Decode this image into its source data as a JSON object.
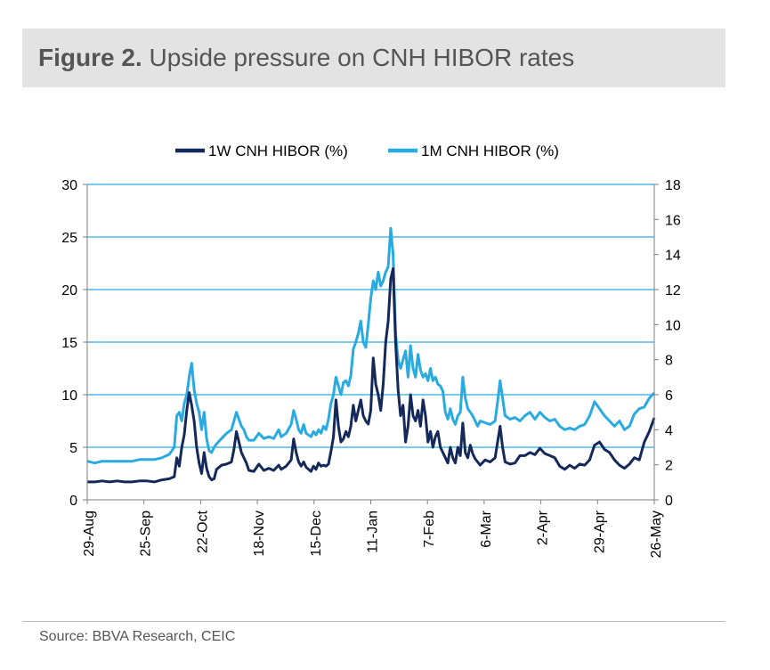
{
  "figure": {
    "label": "Figure  2.",
    "title": "Upside pressure on CNH HIBOR rates",
    "source": "Source:  BBVA Research,  CEIC"
  },
  "chart_data": {
    "type": "line",
    "legend_position": "top-center",
    "grid": "horizontal",
    "x_tick_labels": [
      "29-Aug",
      "25-Sep",
      "22-Oct",
      "18-Nov",
      "15-Dec",
      "11-Jan",
      "7-Feb",
      "6-Mar",
      "2-Apr",
      "29-Apr",
      "26-May"
    ],
    "y_left": {
      "min": 0,
      "max": 30,
      "ticks": [
        0,
        5,
        10,
        15,
        20,
        25,
        30
      ]
    },
    "y_right": {
      "min": 0,
      "max": 18,
      "ticks": [
        0,
        2,
        4,
        6,
        8,
        10,
        12,
        14,
        16,
        18
      ]
    },
    "series": [
      {
        "name": "1W CNH HIBOR (%)",
        "axis": "left",
        "color": "#14285a",
        "points": [
          [
            0,
            1.7
          ],
          [
            3,
            1.7
          ],
          [
            6,
            1.8
          ],
          [
            9,
            1.7
          ],
          [
            12,
            1.8
          ],
          [
            15,
            1.7
          ],
          [
            18,
            1.7
          ],
          [
            21,
            1.8
          ],
          [
            24,
            1.8
          ],
          [
            27,
            1.7
          ],
          [
            30,
            1.9
          ],
          [
            33,
            2.0
          ],
          [
            35,
            2.2
          ],
          [
            36,
            4.0
          ],
          [
            37,
            3.2
          ],
          [
            38,
            5.0
          ],
          [
            39,
            6.2
          ],
          [
            40,
            8.5
          ],
          [
            41,
            10.2
          ],
          [
            42,
            9.0
          ],
          [
            43,
            7.5
          ],
          [
            44,
            5.0
          ],
          [
            45,
            3.5
          ],
          [
            46,
            2.5
          ],
          [
            47,
            4.5
          ],
          [
            48,
            3.0
          ],
          [
            49,
            2.2
          ],
          [
            50,
            1.9
          ],
          [
            51,
            2.0
          ],
          [
            52,
            2.9
          ],
          [
            54,
            3.3
          ],
          [
            56,
            3.4
          ],
          [
            58,
            3.6
          ],
          [
            59,
            4.8
          ],
          [
            60,
            6.5
          ],
          [
            61,
            5.5
          ],
          [
            62,
            4.5
          ],
          [
            63,
            4.0
          ],
          [
            64,
            3.5
          ],
          [
            65,
            2.8
          ],
          [
            67,
            2.7
          ],
          [
            69,
            3.4
          ],
          [
            71,
            2.8
          ],
          [
            73,
            3.0
          ],
          [
            75,
            2.8
          ],
          [
            77,
            3.3
          ],
          [
            78,
            2.9
          ],
          [
            80,
            3.2
          ],
          [
            82,
            3.8
          ],
          [
            83,
            5.8
          ],
          [
            84,
            4.5
          ],
          [
            85,
            3.6
          ],
          [
            86,
            3.2
          ],
          [
            87,
            3.6
          ],
          [
            88,
            3.1
          ],
          [
            90,
            2.7
          ],
          [
            91,
            3.2
          ],
          [
            92,
            2.9
          ],
          [
            93,
            3.5
          ],
          [
            94,
            3.2
          ],
          [
            95,
            3.3
          ],
          [
            96,
            3.2
          ],
          [
            97,
            3.4
          ],
          [
            98,
            4.6
          ],
          [
            99,
            6.0
          ],
          [
            100,
            9.5
          ],
          [
            101,
            7.0
          ],
          [
            102,
            5.5
          ],
          [
            103,
            5.8
          ],
          [
            104,
            6.5
          ],
          [
            105,
            6.0
          ],
          [
            106,
            7.0
          ],
          [
            107,
            9.0
          ],
          [
            108,
            7.5
          ],
          [
            109,
            8.5
          ],
          [
            110,
            9.5
          ],
          [
            111,
            8.0
          ],
          [
            112,
            7.5
          ],
          [
            113,
            7.2
          ],
          [
            114,
            8.5
          ],
          [
            115,
            13.5
          ],
          [
            116,
            11.0
          ],
          [
            117,
            10.0
          ],
          [
            118,
            8.5
          ],
          [
            119,
            11.0
          ],
          [
            120,
            15.0
          ],
          [
            121,
            17.0
          ],
          [
            122,
            21.0
          ],
          [
            123,
            22.0
          ],
          [
            124,
            15.0
          ],
          [
            125,
            10.5
          ],
          [
            126,
            8.0
          ],
          [
            127,
            9.0
          ],
          [
            128,
            5.5
          ],
          [
            129,
            7.0
          ],
          [
            130,
            10.0
          ],
          [
            131,
            8.0
          ],
          [
            132,
            7.5
          ],
          [
            133,
            8.5
          ],
          [
            134,
            7.0
          ],
          [
            135,
            9.5
          ],
          [
            136,
            8.0
          ],
          [
            137,
            5.5
          ],
          [
            138,
            6.5
          ],
          [
            139,
            5.0
          ],
          [
            140,
            6.0
          ],
          [
            141,
            6.5
          ],
          [
            142,
            5.0
          ],
          [
            143,
            4.5
          ],
          [
            144,
            4.0
          ],
          [
            145,
            3.5
          ],
          [
            146,
            5.0
          ],
          [
            147,
            4.0
          ],
          [
            148,
            3.5
          ],
          [
            149,
            5.0
          ],
          [
            150,
            4.2
          ],
          [
            151,
            7.3
          ],
          [
            152,
            4.5
          ],
          [
            153,
            4.0
          ],
          [
            154,
            5.2
          ],
          [
            155,
            4.4
          ],
          [
            156,
            3.9
          ],
          [
            157,
            3.6
          ],
          [
            158,
            3.3
          ],
          [
            160,
            3.8
          ],
          [
            162,
            3.6
          ],
          [
            164,
            4.0
          ],
          [
            165,
            5.5
          ],
          [
            166,
            7.0
          ],
          [
            167,
            5.0
          ],
          [
            168,
            3.6
          ],
          [
            170,
            3.4
          ],
          [
            172,
            3.5
          ],
          [
            174,
            4.2
          ],
          [
            176,
            4.2
          ],
          [
            178,
            4.5
          ],
          [
            180,
            4.3
          ],
          [
            182,
            4.9
          ],
          [
            184,
            4.4
          ],
          [
            186,
            4.2
          ],
          [
            188,
            4.0
          ],
          [
            190,
            3.2
          ],
          [
            192,
            2.9
          ],
          [
            194,
            3.3
          ],
          [
            196,
            3.0
          ],
          [
            198,
            3.4
          ],
          [
            200,
            3.3
          ],
          [
            202,
            3.8
          ],
          [
            204,
            5.2
          ],
          [
            206,
            5.5
          ],
          [
            208,
            4.8
          ],
          [
            210,
            4.5
          ],
          [
            212,
            3.8
          ],
          [
            214,
            3.3
          ],
          [
            216,
            3.0
          ],
          [
            218,
            3.4
          ],
          [
            220,
            4.0
          ],
          [
            222,
            3.8
          ],
          [
            224,
            5.5
          ],
          [
            226,
            6.5
          ],
          [
            228,
            7.8
          ]
        ]
      },
      {
        "name": "1M CNH HIBOR (%)",
        "axis": "right",
        "color": "#29abe2",
        "points": [
          [
            0,
            2.2
          ],
          [
            3,
            2.1
          ],
          [
            6,
            2.2
          ],
          [
            9,
            2.2
          ],
          [
            12,
            2.2
          ],
          [
            15,
            2.2
          ],
          [
            18,
            2.2
          ],
          [
            21,
            2.3
          ],
          [
            24,
            2.3
          ],
          [
            27,
            2.3
          ],
          [
            30,
            2.4
          ],
          [
            33,
            2.6
          ],
          [
            35,
            3.0
          ],
          [
            36,
            4.8
          ],
          [
            37,
            5.0
          ],
          [
            38,
            4.5
          ],
          [
            39,
            5.5
          ],
          [
            40,
            6.0
          ],
          [
            41,
            7.0
          ],
          [
            42,
            7.8
          ],
          [
            43,
            6.3
          ],
          [
            44,
            5.5
          ],
          [
            45,
            5.0
          ],
          [
            46,
            4.0
          ],
          [
            47,
            5.0
          ],
          [
            48,
            3.5
          ],
          [
            49,
            2.8
          ],
          [
            50,
            2.7
          ],
          [
            51,
            3.0
          ],
          [
            52,
            3.2
          ],
          [
            54,
            3.5
          ],
          [
            56,
            3.8
          ],
          [
            58,
            4.0
          ],
          [
            59,
            4.5
          ],
          [
            60,
            5.0
          ],
          [
            61,
            4.6
          ],
          [
            62,
            4.2
          ],
          [
            63,
            4.0
          ],
          [
            64,
            3.6
          ],
          [
            65,
            3.4
          ],
          [
            67,
            3.4
          ],
          [
            69,
            3.8
          ],
          [
            71,
            3.5
          ],
          [
            73,
            3.6
          ],
          [
            75,
            3.5
          ],
          [
            77,
            4.0
          ],
          [
            78,
            3.6
          ],
          [
            80,
            3.8
          ],
          [
            82,
            4.3
          ],
          [
            83,
            5.1
          ],
          [
            84,
            4.6
          ],
          [
            85,
            4.0
          ],
          [
            86,
            3.8
          ],
          [
            87,
            4.3
          ],
          [
            88,
            3.8
          ],
          [
            90,
            3.6
          ],
          [
            91,
            3.9
          ],
          [
            92,
            3.7
          ],
          [
            93,
            4.0
          ],
          [
            94,
            3.8
          ],
          [
            95,
            4.2
          ],
          [
            96,
            4.0
          ],
          [
            97,
            4.6
          ],
          [
            98,
            5.5
          ],
          [
            99,
            6.0
          ],
          [
            100,
            7.0
          ],
          [
            101,
            6.5
          ],
          [
            102,
            6.0
          ],
          [
            103,
            6.7
          ],
          [
            104,
            6.8
          ],
          [
            105,
            6.5
          ],
          [
            106,
            7.1
          ],
          [
            107,
            8.6
          ],
          [
            108,
            9.0
          ],
          [
            109,
            9.5
          ],
          [
            110,
            10.2
          ],
          [
            111,
            9.0
          ],
          [
            112,
            8.7
          ],
          [
            113,
            10.0
          ],
          [
            114,
            11.5
          ],
          [
            115,
            12.5
          ],
          [
            116,
            12.0
          ],
          [
            117,
            13.0
          ],
          [
            118,
            12.2
          ],
          [
            119,
            12.5
          ],
          [
            120,
            13.0
          ],
          [
            121,
            13.3
          ],
          [
            122,
            15.5
          ],
          [
            123,
            14.0
          ],
          [
            124,
            9.5
          ],
          [
            125,
            8.0
          ],
          [
            126,
            7.5
          ],
          [
            127,
            8.0
          ],
          [
            128,
            8.5
          ],
          [
            129,
            7.0
          ],
          [
            130,
            8.8
          ],
          [
            131,
            7.5
          ],
          [
            132,
            7.0
          ],
          [
            133,
            8.3
          ],
          [
            134,
            7.4
          ],
          [
            135,
            7.0
          ],
          [
            136,
            7.2
          ],
          [
            137,
            6.8
          ],
          [
            138,
            7.5
          ],
          [
            139,
            6.8
          ],
          [
            140,
            7.0
          ],
          [
            141,
            6.6
          ],
          [
            142,
            6.5
          ],
          [
            143,
            6.2
          ],
          [
            144,
            5.0
          ],
          [
            145,
            4.6
          ],
          [
            146,
            5.2
          ],
          [
            147,
            4.6
          ],
          [
            148,
            4.3
          ],
          [
            149,
            4.8
          ],
          [
            150,
            5.0
          ],
          [
            151,
            7.0
          ],
          [
            152,
            5.8
          ],
          [
            153,
            5.2
          ],
          [
            154,
            5.0
          ],
          [
            155,
            4.8
          ],
          [
            156,
            4.5
          ],
          [
            157,
            4.2
          ],
          [
            158,
            4.5
          ],
          [
            160,
            4.4
          ],
          [
            162,
            4.3
          ],
          [
            164,
            4.5
          ],
          [
            165,
            5.6
          ],
          [
            166,
            6.8
          ],
          [
            167,
            5.8
          ],
          [
            168,
            4.8
          ],
          [
            170,
            4.6
          ],
          [
            172,
            4.7
          ],
          [
            174,
            4.5
          ],
          [
            176,
            4.8
          ],
          [
            178,
            5.0
          ],
          [
            180,
            4.6
          ],
          [
            182,
            5.0
          ],
          [
            184,
            4.7
          ],
          [
            186,
            4.5
          ],
          [
            188,
            4.6
          ],
          [
            190,
            4.2
          ],
          [
            192,
            4.0
          ],
          [
            194,
            4.1
          ],
          [
            196,
            4.0
          ],
          [
            198,
            4.2
          ],
          [
            200,
            4.3
          ],
          [
            202,
            4.8
          ],
          [
            204,
            5.6
          ],
          [
            206,
            5.2
          ],
          [
            208,
            4.8
          ],
          [
            210,
            4.5
          ],
          [
            212,
            4.2
          ],
          [
            214,
            4.5
          ],
          [
            216,
            4.0
          ],
          [
            218,
            4.2
          ],
          [
            220,
            4.9
          ],
          [
            222,
            5.2
          ],
          [
            224,
            5.3
          ],
          [
            226,
            5.8
          ],
          [
            228,
            6.1
          ]
        ]
      }
    ]
  }
}
